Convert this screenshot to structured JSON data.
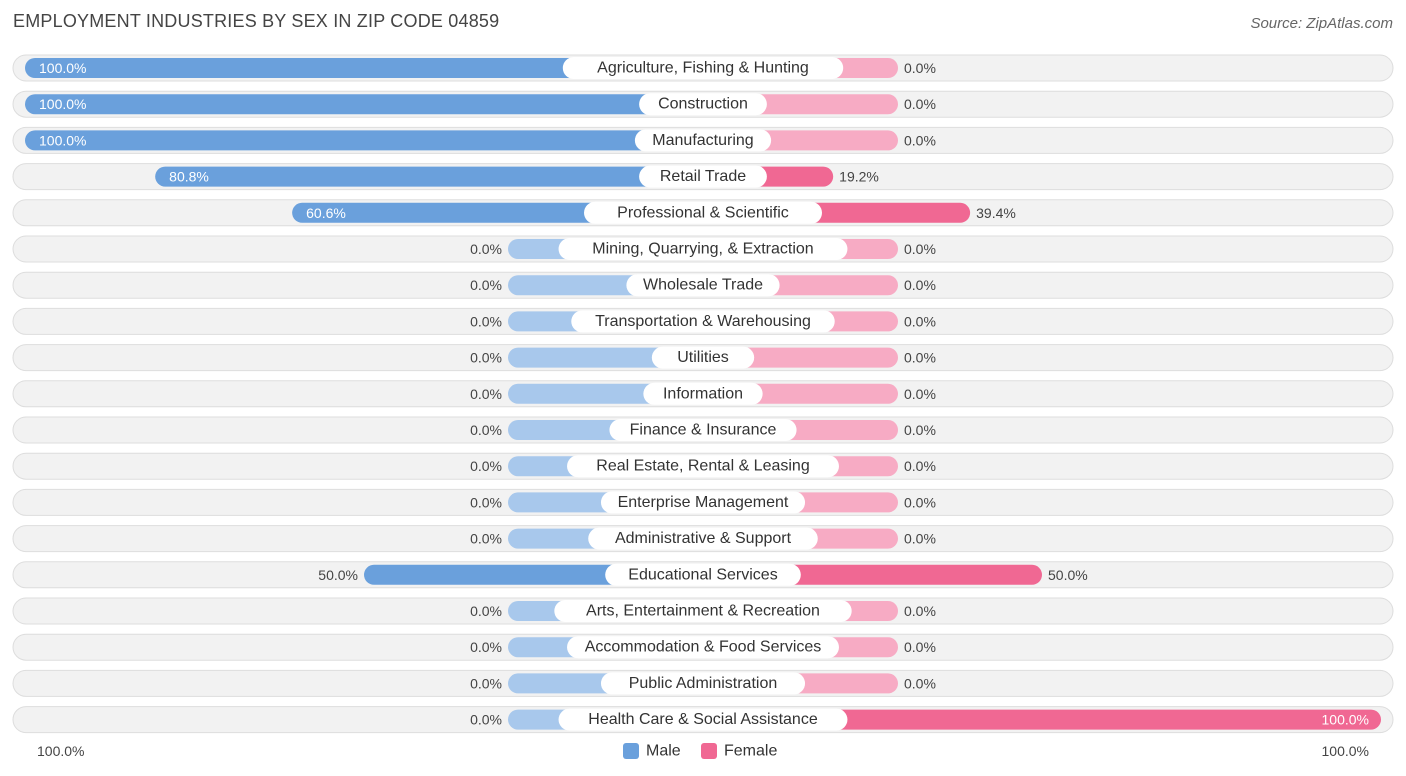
{
  "title": "EMPLOYMENT INDUSTRIES BY SEX IN ZIP CODE 04859",
  "source": "Source: ZipAtlas.com",
  "colors": {
    "male_strong": "#6aa0dc",
    "male_light": "#a8c8ec",
    "female_strong": "#f06893",
    "female_light": "#f7abc4"
  },
  "chart_data": {
    "type": "bar",
    "orientation": "diverging-horizontal",
    "title": "EMPLOYMENT INDUSTRIES BY SEX IN ZIP CODE 04859",
    "categories": [
      "Agriculture, Fishing & Hunting",
      "Construction",
      "Manufacturing",
      "Retail Trade",
      "Professional & Scientific",
      "Mining, Quarrying, & Extraction",
      "Wholesale Trade",
      "Transportation & Warehousing",
      "Utilities",
      "Information",
      "Finance & Insurance",
      "Real Estate, Rental & Leasing",
      "Enterprise Management",
      "Administrative & Support",
      "Educational Services",
      "Arts, Entertainment & Recreation",
      "Accommodation & Food Services",
      "Public Administration",
      "Health Care & Social Assistance"
    ],
    "series": [
      {
        "name": "Male",
        "values": [
          100.0,
          100.0,
          100.0,
          80.8,
          60.6,
          0.0,
          0.0,
          0.0,
          0.0,
          0.0,
          0.0,
          0.0,
          0.0,
          0.0,
          50.0,
          0.0,
          0.0,
          0.0,
          0.0
        ],
        "labels": [
          "100.0%",
          "100.0%",
          "100.0%",
          "80.8%",
          "60.6%",
          "0.0%",
          "0.0%",
          "0.0%",
          "0.0%",
          "0.0%",
          "0.0%",
          "0.0%",
          "0.0%",
          "0.0%",
          "50.0%",
          "0.0%",
          "0.0%",
          "0.0%",
          "0.0%"
        ]
      },
      {
        "name": "Female",
        "values": [
          0.0,
          0.0,
          0.0,
          19.2,
          39.4,
          0.0,
          0.0,
          0.0,
          0.0,
          0.0,
          0.0,
          0.0,
          0.0,
          0.0,
          50.0,
          0.0,
          0.0,
          0.0,
          100.0
        ],
        "labels": [
          "0.0%",
          "0.0%",
          "0.0%",
          "19.2%",
          "39.4%",
          "0.0%",
          "0.0%",
          "0.0%",
          "0.0%",
          "0.0%",
          "0.0%",
          "0.0%",
          "0.0%",
          "0.0%",
          "50.0%",
          "0.0%",
          "0.0%",
          "0.0%",
          "100.0%"
        ]
      }
    ],
    "xlim": [
      0,
      100
    ],
    "axis_left_label": "100.0%",
    "axis_right_label": "100.0%",
    "legend_position": "bottom-center",
    "grid": false
  }
}
